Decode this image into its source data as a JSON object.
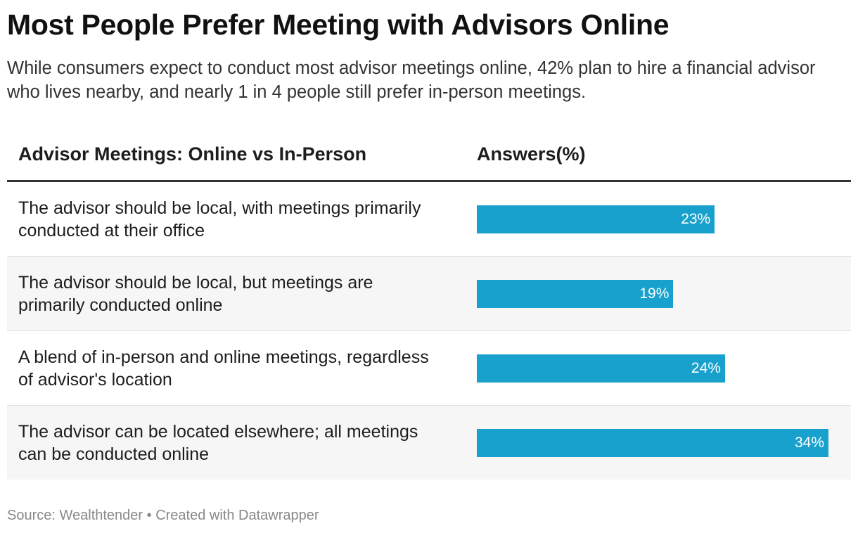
{
  "title": "Most People Prefer Meeting with Advisors Online",
  "subtitle": "While consumers expect to conduct most advisor meetings online, 42% plan to hire a financial advisor who lives nearby, and nearly 1 in 4 people still prefer in-person meetings.",
  "footer": {
    "source": "Source: Wealthtender",
    "separator": " • ",
    "credit": "Created with Datawrapper"
  },
  "colors": {
    "bar": "#18a1cd",
    "bar_label": "#ffffff",
    "row_shade": "#f6f6f6",
    "header_rule": "#333333"
  },
  "chart_data": {
    "type": "bar",
    "orientation": "horizontal",
    "column_headers": [
      "Advisor Meetings: Online vs In-Person",
      "Answers(%)"
    ],
    "categories": [
      "The advisor should be local, with meetings primarily conducted at their office",
      "The advisor should be local, but meetings are primarily conducted online",
      "A blend of in-person and online meetings, regardless of advisor's location",
      "The advisor can be located elsewhere; all meetings can be conducted online"
    ],
    "values": [
      23,
      19,
      24,
      34
    ],
    "value_labels": [
      "23%",
      "19%",
      "24%",
      "34%"
    ],
    "xlim": [
      0,
      34
    ],
    "grid": false
  }
}
